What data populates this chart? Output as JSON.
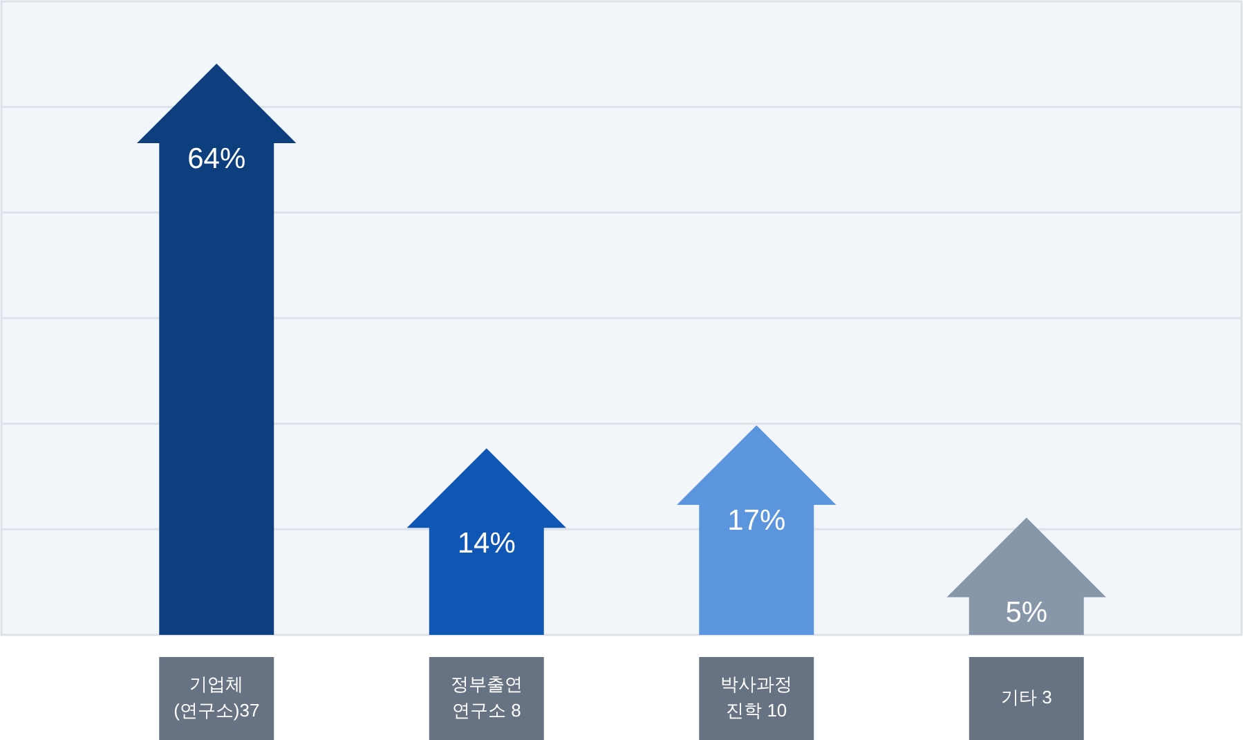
{
  "chart_data": {
    "type": "bar",
    "categories": [
      "기업체 (연구소)37",
      "정부출연 연구소 8",
      "박사과정 진학 10",
      "기타 3"
    ],
    "values": [
      64,
      14,
      17,
      5
    ],
    "colors": [
      "#0d3f7e",
      "#1057b5",
      "#5b95dd",
      "#8797a9"
    ],
    "value_labels": [
      "64%",
      "14%",
      "17%",
      "5%"
    ],
    "grid": "y",
    "tick_labels": "x"
  }
}
